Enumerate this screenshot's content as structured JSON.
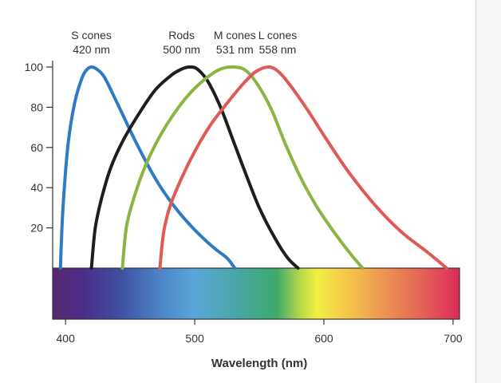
{
  "chart_data": {
    "type": "line",
    "title": "",
    "xlabel": "Wavelength (nm)",
    "ylabel": "",
    "xlim": [
      390,
      705
    ],
    "ylim": [
      0,
      100
    ],
    "grid": false,
    "legend": "none",
    "x_ticks": [
      "400",
      "500",
      "600",
      "700"
    ],
    "y_ticks": [
      "100",
      "80",
      "60",
      "40",
      "20"
    ],
    "series": [
      {
        "name": "S cones",
        "peak_label": "420 nm",
        "color": "#2f7ac4",
        "points": [
          [
            396,
            0
          ],
          [
            398,
            30
          ],
          [
            402,
            62
          ],
          [
            407,
            82
          ],
          [
            413,
            95
          ],
          [
            417,
            99
          ],
          [
            420,
            100
          ],
          [
            424,
            99
          ],
          [
            430,
            95
          ],
          [
            440,
            82
          ],
          [
            455,
            62
          ],
          [
            470,
            44
          ],
          [
            485,
            30
          ],
          [
            500,
            19
          ],
          [
            515,
            10
          ],
          [
            525,
            5
          ],
          [
            531,
            0
          ]
        ]
      },
      {
        "name": "Rods",
        "peak_label": "500 nm",
        "color": "#1e1e1e",
        "points": [
          [
            420,
            0
          ],
          [
            423,
            20
          ],
          [
            428,
            35
          ],
          [
            435,
            50
          ],
          [
            445,
            64
          ],
          [
            458,
            78
          ],
          [
            470,
            89
          ],
          [
            482,
            96
          ],
          [
            490,
            99
          ],
          [
            496,
            100
          ],
          [
            502,
            99
          ],
          [
            510,
            93
          ],
          [
            520,
            80
          ],
          [
            530,
            63
          ],
          [
            540,
            46
          ],
          [
            550,
            30
          ],
          [
            562,
            15
          ],
          [
            572,
            5
          ],
          [
            580,
            0
          ]
        ]
      },
      {
        "name": "M cones",
        "peak_label": "531 nm",
        "color": "#8cb443",
        "points": [
          [
            444,
            0
          ],
          [
            447,
            20
          ],
          [
            452,
            33
          ],
          [
            460,
            48
          ],
          [
            470,
            62
          ],
          [
            482,
            75
          ],
          [
            495,
            86
          ],
          [
            508,
            94
          ],
          [
            520,
            99
          ],
          [
            531,
            100
          ],
          [
            540,
            98
          ],
          [
            550,
            90
          ],
          [
            560,
            78
          ],
          [
            570,
            62
          ],
          [
            582,
            45
          ],
          [
            595,
            30
          ],
          [
            610,
            16
          ],
          [
            622,
            6
          ],
          [
            630,
            0
          ]
        ]
      },
      {
        "name": "L cones",
        "peak_label": "558 nm",
        "color": "#e05a55",
        "points": [
          [
            473,
            0
          ],
          [
            476,
            18
          ],
          [
            481,
            31
          ],
          [
            490,
            45
          ],
          [
            500,
            58
          ],
          [
            512,
            71
          ],
          [
            525,
            82
          ],
          [
            538,
            92
          ],
          [
            548,
            98
          ],
          [
            558,
            100
          ],
          [
            566,
            97
          ],
          [
            575,
            90
          ],
          [
            588,
            78
          ],
          [
            603,
            63
          ],
          [
            620,
            47
          ],
          [
            640,
            31
          ],
          [
            660,
            18
          ],
          [
            680,
            8
          ],
          [
            695,
            0
          ]
        ]
      }
    ]
  }
}
